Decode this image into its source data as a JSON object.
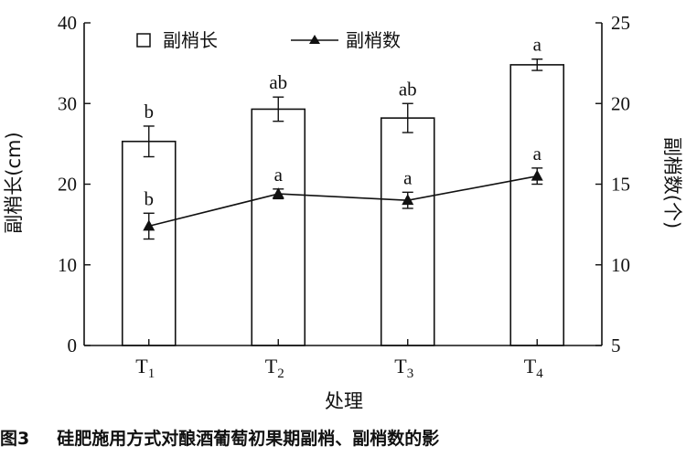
{
  "caption": {
    "label": "图3",
    "text": "硅肥施用方式对酿酒葡萄初果期副梢、副梢数的影"
  },
  "chart_data": {
    "type": "bar+line",
    "categories": [
      "T1",
      "T2",
      "T3",
      "T4"
    ],
    "category_labels": [
      {
        "main": "T",
        "sub": "1"
      },
      {
        "main": "T",
        "sub": "2"
      },
      {
        "main": "T",
        "sub": "3"
      },
      {
        "main": "T",
        "sub": "4"
      }
    ],
    "xlabel": "处理",
    "y_left": {
      "label": "副梢长(cm)",
      "lim": [
        0,
        40
      ],
      "ticks": [
        0,
        10,
        20,
        30,
        40
      ]
    },
    "y_right": {
      "label": "副梢数(个)",
      "lim": [
        5,
        25
      ],
      "ticks": [
        5,
        10,
        15,
        20,
        25
      ]
    },
    "series": [
      {
        "name": "副梢长",
        "type": "bar",
        "axis": "left",
        "values": [
          25.3,
          29.3,
          28.2,
          34.8
        ],
        "errors": [
          1.9,
          1.5,
          1.8,
          0.7
        ],
        "letters": [
          "b",
          "ab",
          "ab",
          "a"
        ],
        "fill": "#ffffff",
        "stroke": "#111111"
      },
      {
        "name": "副梢数",
        "type": "line",
        "axis": "right",
        "marker": "triangle",
        "values": [
          12.4,
          14.4,
          14.0,
          15.5
        ],
        "errors": [
          0.8,
          0.3,
          0.5,
          0.5
        ],
        "letters": [
          "b",
          "a",
          "a",
          "a"
        ],
        "color": "#111111"
      }
    ],
    "legend": {
      "position": "top-left-inside",
      "orientation": "horizontal"
    },
    "grid": false
  }
}
